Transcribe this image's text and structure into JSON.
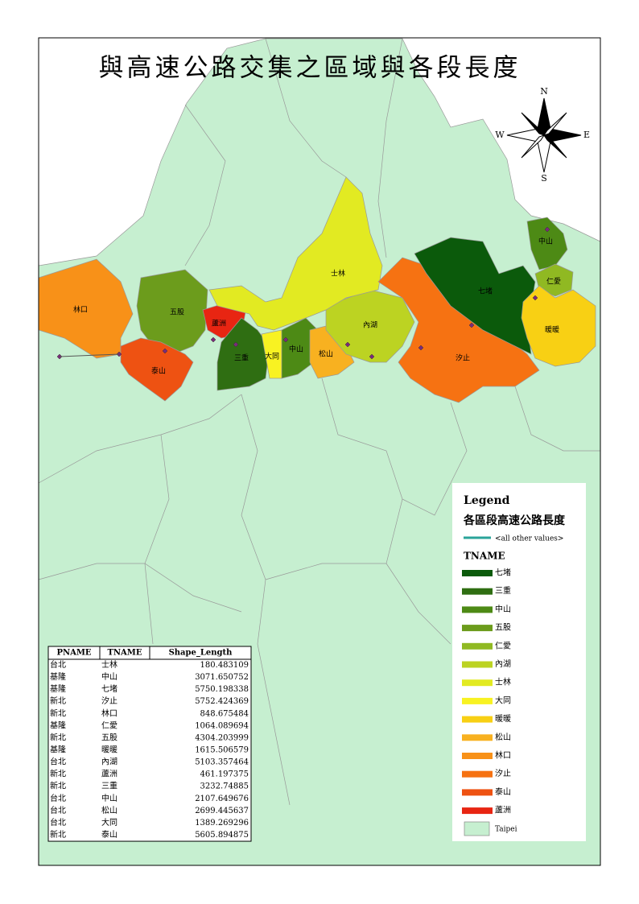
{
  "title": "與高速公路交集之區域與各段長度",
  "compass": {
    "north": "N",
    "south": "S",
    "east": "E",
    "west": "W"
  },
  "map_labels": [
    "林口",
    "五股",
    "蘆洲",
    "泰山",
    "三重",
    "大同",
    "中山",
    "松山",
    "內湖",
    "士林",
    "汐止",
    "七堵",
    "中山",
    "仁愛",
    "暖暖"
  ],
  "table": {
    "columns": [
      "PNAME",
      "TNAME",
      "Shape_Length"
    ],
    "rows": [
      [
        "台北",
        "士林",
        180.483109
      ],
      [
        "基隆",
        "中山",
        3071.650752
      ],
      [
        "基隆",
        "七堵",
        5750.198338
      ],
      [
        "新北",
        "汐止",
        5752.424369
      ],
      [
        "新北",
        "林口",
        848.675484
      ],
      [
        "基隆",
        "仁愛",
        1064.089694
      ],
      [
        "新北",
        "五股",
        4304.203999
      ],
      [
        "基隆",
        "暖暖",
        1615.506579
      ],
      [
        "台北",
        "內湖",
        5103.357464
      ],
      [
        "新北",
        "蘆洲",
        461.197375
      ],
      [
        "新北",
        "三重",
        3232.74885
      ],
      [
        "台北",
        "中山",
        2107.649676
      ],
      [
        "台北",
        "松山",
        2699.445637
      ],
      [
        "台北",
        "大同",
        1389.269296
      ],
      [
        "新北",
        "泰山",
        5605.894875
      ]
    ]
  },
  "legend": {
    "title": "Legend",
    "subtitle": "各區段高速公路長度",
    "other": "<all other values>",
    "other_color": "#2aa39a",
    "field": "TNAME",
    "items": [
      {
        "label": "七堵",
        "color": "#0b5a0b"
      },
      {
        "label": "三重",
        "color": "#2f6e12"
      },
      {
        "label": "中山",
        "color": "#4d8a15"
      },
      {
        "label": "五股",
        "color": "#6c9c1c"
      },
      {
        "label": "仁愛",
        "color": "#90b922"
      },
      {
        "label": "內湖",
        "color": "#bcd322"
      },
      {
        "label": "士林",
        "color": "#e2ea22"
      },
      {
        "label": "大同",
        "color": "#f8f222"
      },
      {
        "label": "暖暖",
        "color": "#f8d014"
      },
      {
        "label": "松山",
        "color": "#f8b120"
      },
      {
        "label": "林口",
        "color": "#f89118"
      },
      {
        "label": "汐止",
        "color": "#f67212"
      },
      {
        "label": "泰山",
        "color": "#ee5212"
      },
      {
        "label": "蘆洲",
        "color": "#e82512"
      }
    ],
    "base": {
      "label": "Taipei",
      "color": "#c6efd0"
    }
  }
}
